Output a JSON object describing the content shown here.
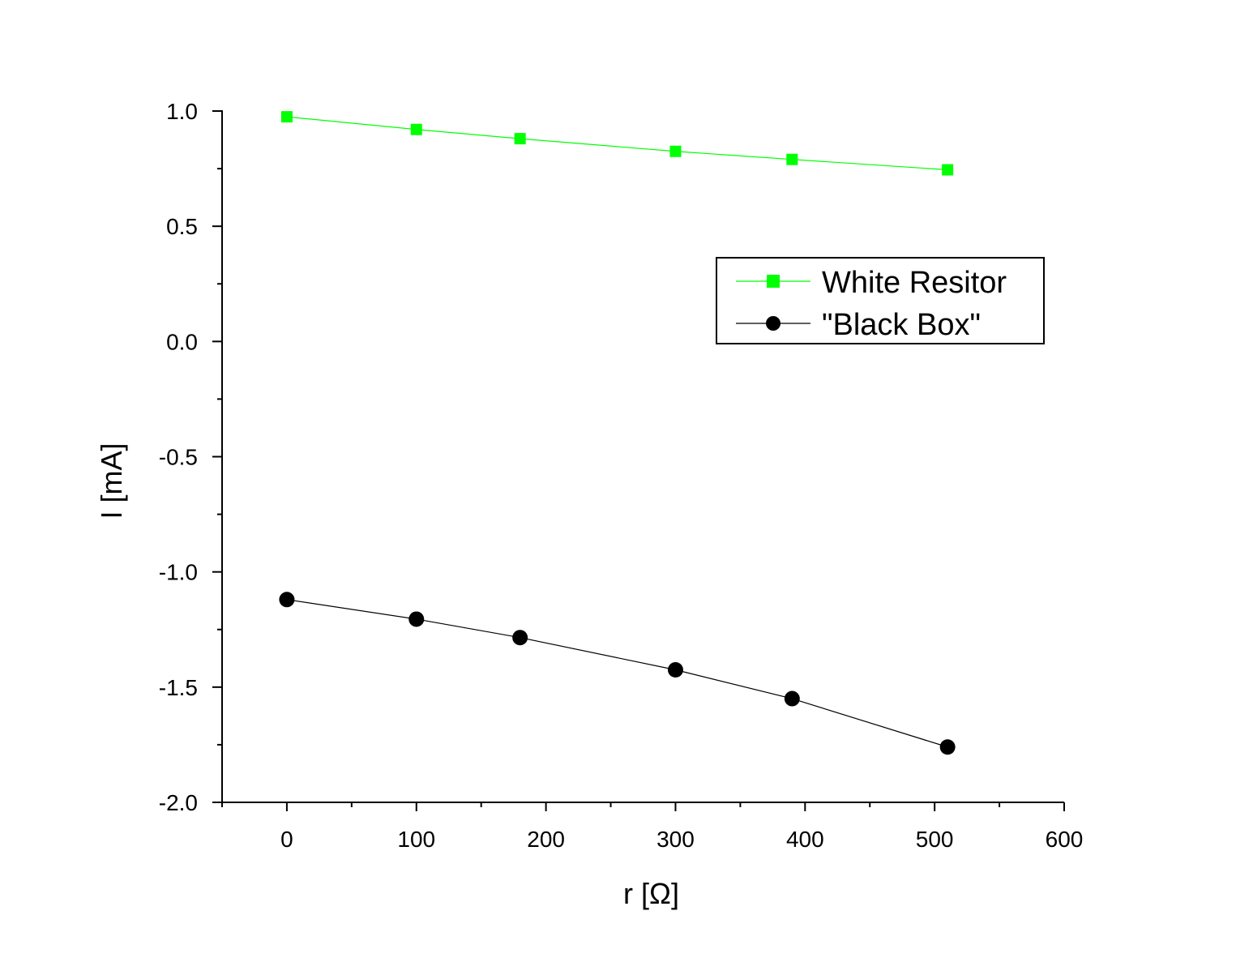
{
  "chart_data": {
    "type": "line",
    "xlabel": "r [Ω]",
    "ylabel": "I [mA]",
    "xlim": [
      -50,
      600
    ],
    "ylim": [
      -2.0,
      1.0
    ],
    "x_ticks": [
      0,
      100,
      200,
      300,
      400,
      500,
      600
    ],
    "x_tick_labels": [
      "0",
      "100",
      "200",
      "300",
      "400",
      "500",
      "600"
    ],
    "y_ticks": [
      -2.0,
      -1.5,
      -1.0,
      -0.5,
      0.0,
      0.5,
      1.0
    ],
    "y_tick_labels": [
      "-2.0",
      "-1.5",
      "-1.0",
      "-0.5",
      "0.0",
      "0.5",
      "1.0"
    ],
    "grid": false,
    "legend_position": "upper-right",
    "series": [
      {
        "name": "White Resitor",
        "color": "#00ff00",
        "marker": "square",
        "x": [
          0,
          100,
          180,
          300,
          390,
          510
        ],
        "y": [
          0.975,
          0.92,
          0.88,
          0.825,
          0.79,
          0.745
        ]
      },
      {
        "name": "\"Black Box\"",
        "color": "#000000",
        "marker": "circle",
        "x": [
          0,
          100,
          180,
          300,
          390,
          510
        ],
        "y": [
          -1.12,
          -1.205,
          -1.285,
          -1.425,
          -1.55,
          -1.76
        ]
      }
    ]
  }
}
